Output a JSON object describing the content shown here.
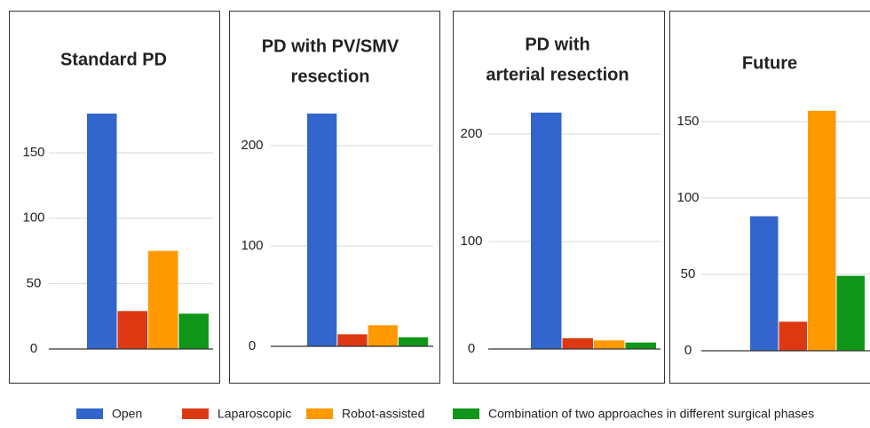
{
  "chart_data": [
    {
      "type": "bar",
      "title": [
        "Standard PD"
      ],
      "values": [
        180,
        29,
        75,
        27
      ],
      "ylim": [
        0,
        185
      ],
      "yticks": [
        0,
        50,
        100,
        150
      ],
      "grid": true
    },
    {
      "type": "bar",
      "title": [
        "PD with PV/SMV",
        "resection"
      ],
      "values": [
        232,
        12,
        21,
        9
      ],
      "ylim": [
        0,
        250
      ],
      "yticks": [
        0,
        100,
        200
      ],
      "grid": true
    },
    {
      "type": "bar",
      "title": [
        "PD with",
        "arterial resection"
      ],
      "values": [
        220,
        10,
        8,
        6
      ],
      "ylim": [
        0,
        230
      ],
      "yticks": [
        0,
        100,
        200
      ],
      "grid": true
    },
    {
      "type": "bar",
      "title": [
        "Future"
      ],
      "values": [
        88,
        19,
        157,
        49
      ],
      "ylim": [
        0,
        165
      ],
      "yticks": [
        0,
        50,
        100,
        150
      ],
      "grid": true
    }
  ],
  "legend": [
    {
      "name": "Open",
      "color": "#3366cc"
    },
    {
      "name": "Laparoscopic",
      "color": "#dc3912"
    },
    {
      "name": "Robot-assisted",
      "color": "#ff9900"
    },
    {
      "name": "Combination of two approaches in different surgical phases",
      "color": "#109618"
    }
  ]
}
